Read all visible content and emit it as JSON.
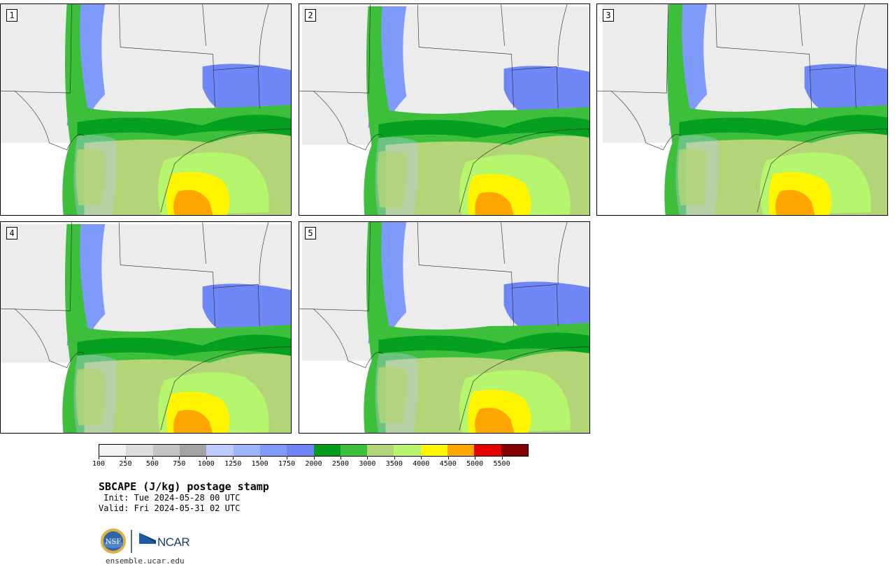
{
  "panels": [
    {
      "label": "1"
    },
    {
      "label": "2"
    },
    {
      "label": "3"
    },
    {
      "label": "4"
    },
    {
      "label": "5"
    }
  ],
  "colorbar": {
    "colors": [
      "#f2f2f2",
      "#dcdcdc",
      "#c4c4c4",
      "#a3a3a3",
      "#bccaff",
      "#9cb4ff",
      "#7e9bfb",
      "#6f86f6",
      "#009c1e",
      "#3ebf3c",
      "#b4d478",
      "#b6f56e",
      "#fff500",
      "#ffa500",
      "#e60000",
      "#840000"
    ],
    "tick_labels": [
      "100",
      "250",
      "500",
      "750",
      "1000",
      "1250",
      "1500",
      "1750",
      "2000",
      "2500",
      "3000",
      "3500",
      "4000",
      "4500",
      "5000",
      "5500"
    ]
  },
  "title": "SBCAPE (J/kg) postage stamp",
  "init": " Init: Tue 2024-05-28 00 UTC",
  "valid": "Valid: Fri 2024-05-31 02 UTC",
  "logos": {
    "nsf": "NSF",
    "ncar": "NCAR"
  },
  "url": "ensemble.ucar.edu"
}
